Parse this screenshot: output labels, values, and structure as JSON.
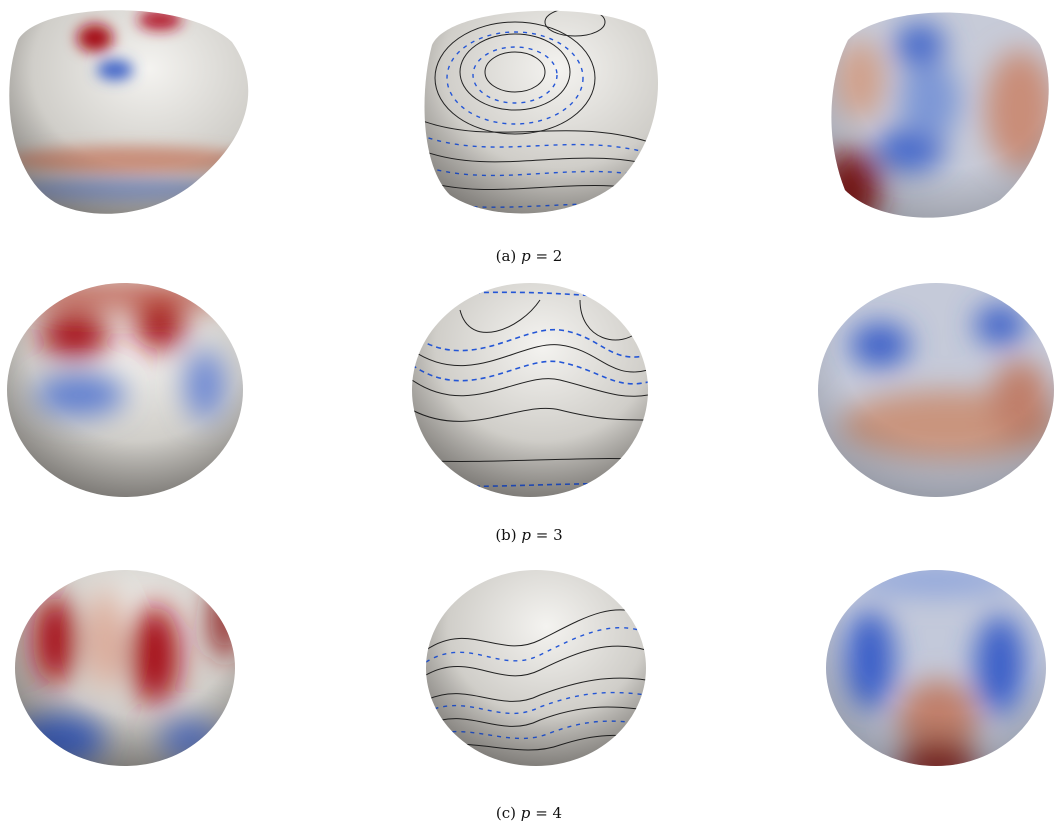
{
  "figure": {
    "panels": [
      {
        "label": "(a)",
        "variable": "p",
        "relation": "= 2"
      },
      {
        "label": "(b)",
        "variable": "p",
        "relation": "= 3"
      },
      {
        "label": "(c)",
        "variable": "p",
        "relation": "= 4"
      }
    ]
  }
}
